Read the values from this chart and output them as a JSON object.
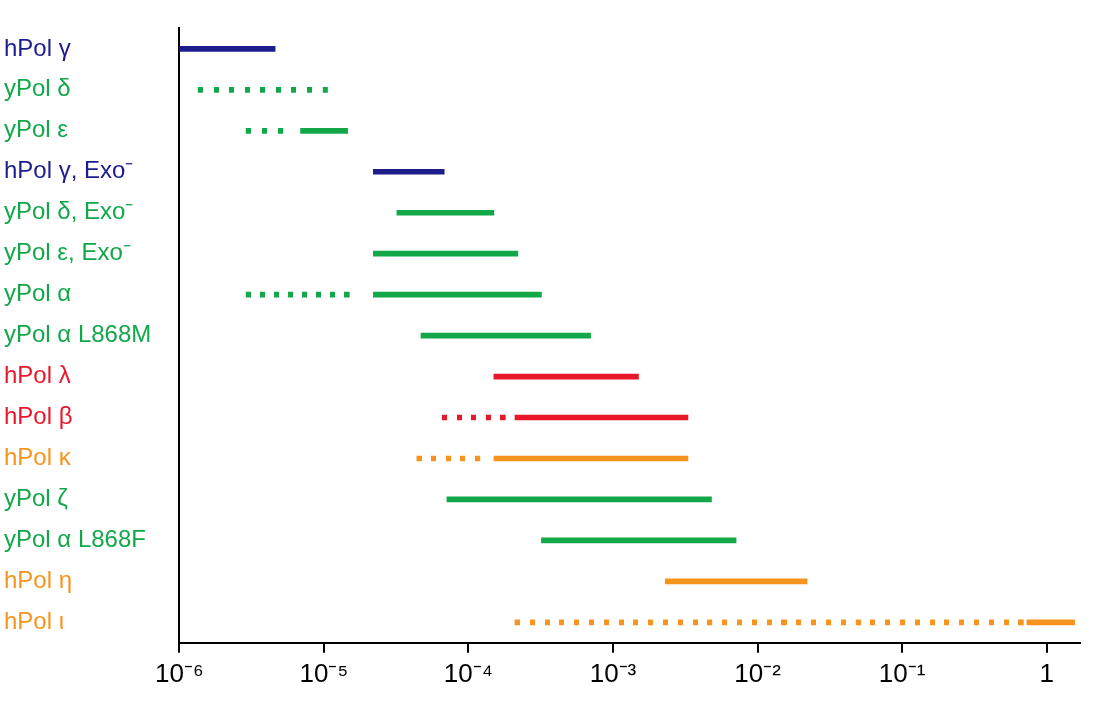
{
  "chart_data": {
    "type": "bar",
    "orientation": "horizontal",
    "log": "x",
    "categories": [
      "hPol γ",
      "yPol δ",
      "yPol ε",
      "hPol γ, Exo⁻",
      "yPol δ, Exo⁻",
      "yPol ε, Exo⁻",
      "yPol α",
      "yPol α L868M",
      "hPol λ",
      "hPol β",
      "hPol κ",
      "yPol ζ",
      "yPol α L868F",
      "hPol η",
      "hPol ι"
    ],
    "xlim": [
      1e-06,
      1.7
    ],
    "xticks": [
      {
        "value": 1e-06,
        "label": "10⁻⁶"
      },
      {
        "value": 1e-05,
        "label": "10⁻⁵"
      },
      {
        "value": 0.0001,
        "label": "10⁻⁴"
      },
      {
        "value": 0.001,
        "label": "10⁻³"
      },
      {
        "value": 0.01,
        "label": "10⁻²"
      },
      {
        "value": 0.1,
        "label": "10⁻¹"
      },
      1
    ],
    "series": [
      {
        "line_style": "solid",
        "base": [
          1e-06,
          null,
          6.9e-06,
          2.2e-05,
          3.2e-05,
          2.2e-05,
          2.2e-05,
          4.7e-05,
          0.00015,
          0.00021,
          0.00015,
          7.1e-05,
          0.00032,
          0.0023,
          0.73
        ],
        "values": [
          3.6e-06,
          null,
          7.7e-06,
          4.6e-05,
          0.000118,
          0.000198,
          0.000298,
          0.000653,
          0.00135,
          0.00309,
          0.00315,
          0.004729,
          0.00678,
          0.0197,
          0.83
        ],
        "colors": [
          "#1c1c8c",
          null,
          "#12a84a",
          "#1c1c8c",
          "#12a84a",
          "#12a84a",
          "#12a84a",
          "#12a84a",
          "#e8182a",
          "#e8182a",
          "#f7941d",
          "#12a84a",
          "#12a84a",
          "#f7941d",
          "#f7941d"
        ]
      },
      {
        "line_style": "dotted",
        "base": [
          null,
          1.35e-06,
          2.9e-06,
          null,
          null,
          null,
          2.9e-06,
          null,
          null,
          6.6e-05,
          4.4e-05,
          null,
          null,
          null,
          0.00021
        ],
        "values": [
          null,
          9.25e-06,
          2.3e-06,
          null,
          null,
          null,
          1.21e-05,
          null,
          null,
          0.000114,
          7.6e-05,
          null,
          null,
          null,
          0.6898
        ],
        "colors": [
          null,
          "#12a84a",
          "#12a84a",
          null,
          null,
          null,
          "#12a84a",
          null,
          null,
          "#e8182a",
          "#f7941d",
          null,
          null,
          null,
          "#f7941d"
        ]
      }
    ]
  }
}
